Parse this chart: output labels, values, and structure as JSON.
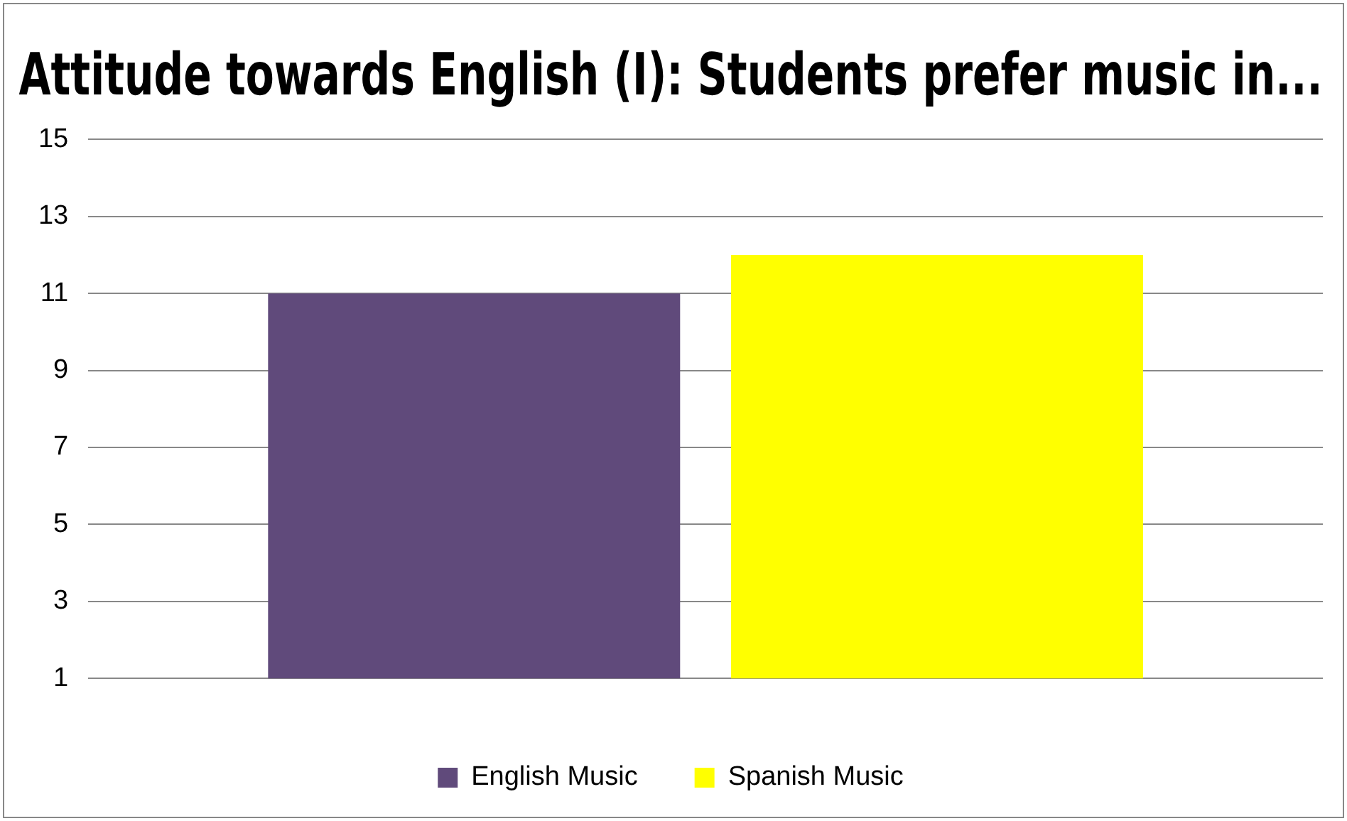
{
  "chart_data": {
    "type": "bar",
    "title": "Attitude towards English (I): Students prefer music in...",
    "categories": [
      null
    ],
    "series": [
      {
        "name": "English Music",
        "color": "#604a7b",
        "values": [
          11
        ]
      },
      {
        "name": "Spanish Music",
        "color": "#ffff00",
        "values": [
          12
        ]
      }
    ],
    "ylim": [
      1,
      15
    ],
    "yticks": [
      1,
      3,
      5,
      7,
      9,
      11,
      13,
      15
    ],
    "grid": "y",
    "legend": "bottom"
  }
}
